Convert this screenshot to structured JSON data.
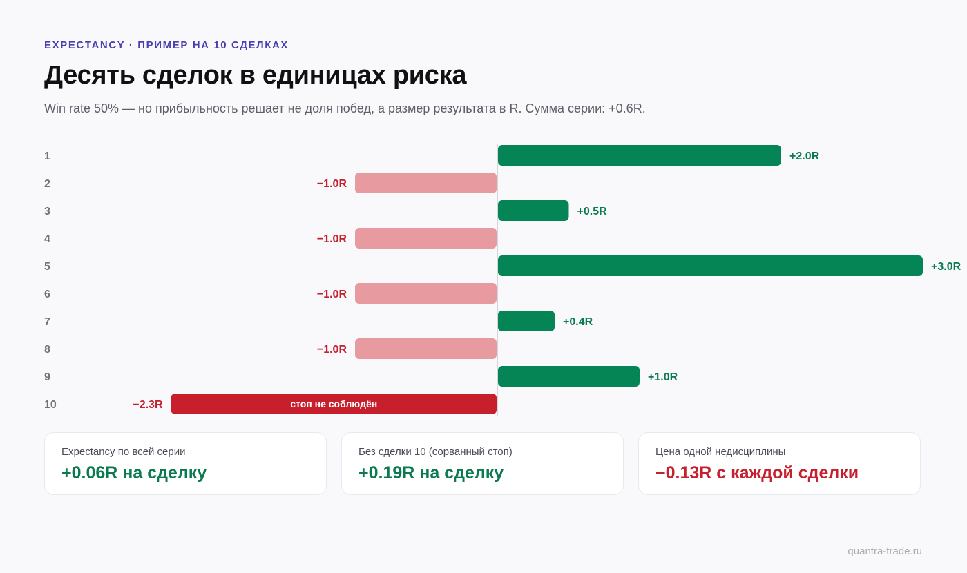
{
  "eyebrow": "EXPECTANCY · ПРИМЕР НА 10 СДЕЛКАХ",
  "title": "Десять сделок в единицах риска",
  "subtitle": "Win rate 50% — но прибыльность решает не доля побед, а размер результата в R. Сумма серии: +0.6R.",
  "colors": {
    "win": "#058556",
    "loss": "#e79aa0",
    "loss_highlight": "#c81f2d",
    "win_text": "#0a7a4f",
    "loss_text": "#c4202e",
    "row_label": "#6f717b",
    "axis": "#c9cad1"
  },
  "chart_data": {
    "type": "bar",
    "orientation": "horizontal",
    "categories": [
      "1",
      "2",
      "3",
      "4",
      "5",
      "6",
      "7",
      "8",
      "9",
      "10"
    ],
    "values": [
      2.0,
      -1.0,
      0.5,
      -1.0,
      3.0,
      -1.0,
      0.4,
      -1.0,
      1.0,
      -2.3
    ],
    "value_labels": [
      "+2.0R",
      "−1.0R",
      "+0.5R",
      "−1.0R",
      "+3.0R",
      "−1.0R",
      "+0.4R",
      "−1.0R",
      "+1.0R",
      "−2.3R"
    ],
    "highlight_index": 9,
    "annotations": [
      {
        "index": 9,
        "text": "стоп не соблюдён"
      }
    ],
    "xlim": [
      -3.2,
      3.0
    ],
    "grid": false,
    "legend": "none"
  },
  "cards": [
    {
      "label": "Expectancy по всей серии",
      "value": "+0.06R на сделку",
      "tone": "win"
    },
    {
      "label": "Без сделки 10 (сорванный стоп)",
      "value": "+0.19R на сделку",
      "tone": "win"
    },
    {
      "label": "Цена одной недисциплины",
      "value": "−0.13R с каждой сделки",
      "tone": "loss"
    }
  ],
  "footer": "quantra-trade.ru"
}
